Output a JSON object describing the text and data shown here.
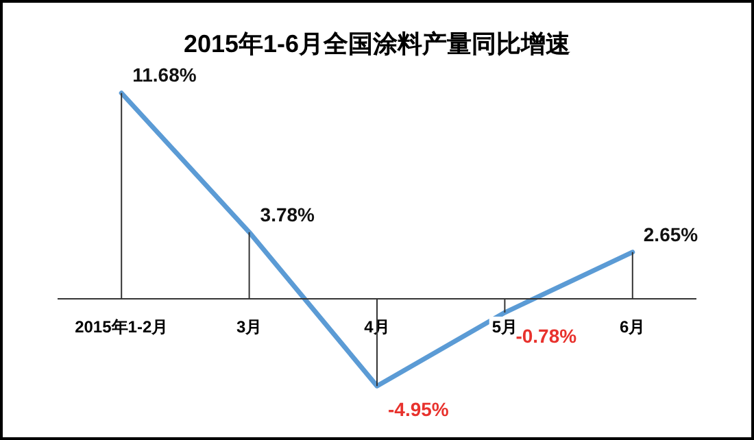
{
  "chart_data": {
    "type": "line",
    "title": "2015年1-6月全国涂料产量同比增速",
    "categories": [
      "2015年1-2月",
      "3月",
      "4月",
      "5月",
      "6月"
    ],
    "series": [
      {
        "color": "#5b9bd5",
        "values": [
          11.68,
          3.78,
          -4.95,
          -0.78,
          2.65
        ],
        "value_labels": [
          "11.68%",
          "3.78%",
          "-4.95%",
          "-0.78%",
          "2.65%"
        ]
      }
    ],
    "legend": false,
    "tick_labels": "x",
    "marker": "none"
  }
}
